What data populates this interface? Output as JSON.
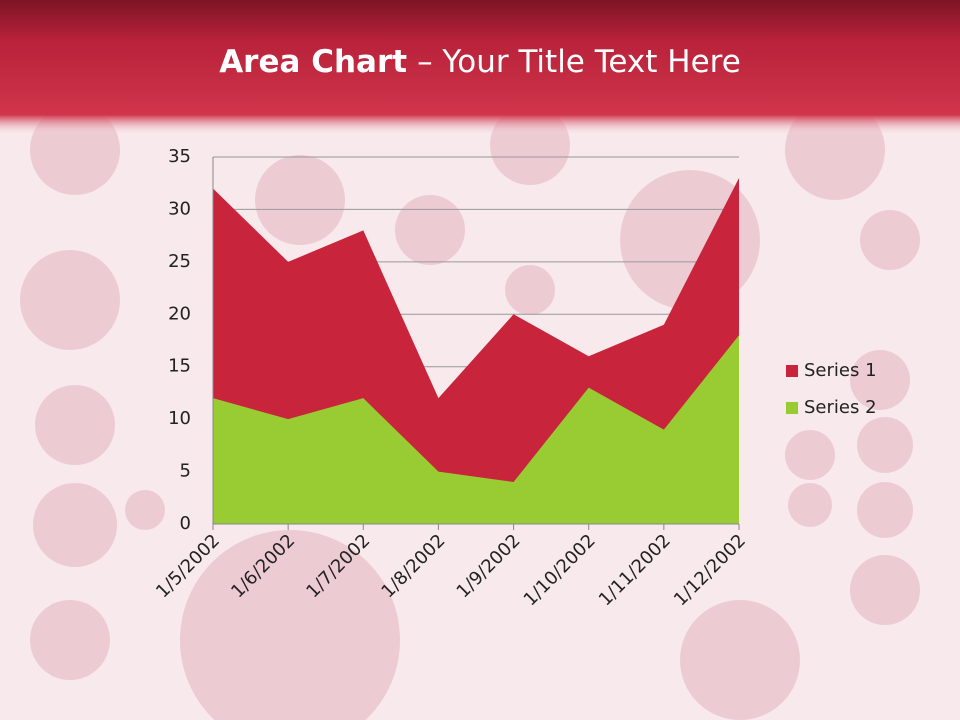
{
  "chart_data": {
    "type": "area",
    "title": {
      "bold": "Area Chart",
      "rest": "– Your Title Text Here"
    },
    "categories": [
      "1/5/2002",
      "1/6/2002",
      "1/7/2002",
      "1/8/2002",
      "1/9/2002",
      "1/10/2002",
      "1/11/2002",
      "1/12/2002"
    ],
    "series": [
      {
        "name": "Series 1",
        "color": "#c8243c",
        "values": [
          32,
          25,
          28,
          12,
          20,
          16,
          19,
          33
        ]
      },
      {
        "name": "Series 2",
        "color": "#99cc33",
        "values": [
          12,
          10,
          12,
          5,
          4,
          13,
          9,
          18
        ]
      }
    ],
    "ylim": [
      0,
      35
    ],
    "yticks": [
      0,
      5,
      10,
      15,
      20,
      25,
      30,
      35
    ],
    "grid": true,
    "legend": "right"
  }
}
